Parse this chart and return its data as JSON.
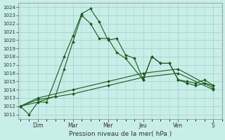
{
  "xlabel": "Pression niveau de la mer( hPa )",
  "bg_color": "#c8eee8",
  "grid_color": "#a0cccc",
  "line_color": "#1a5c1a",
  "ylim_min": 1010.5,
  "ylim_max": 1024.5,
  "yticks": [
    1011,
    1012,
    1013,
    1014,
    1015,
    1016,
    1017,
    1018,
    1019,
    1020,
    1021,
    1022,
    1023,
    1024
  ],
  "day_labels": [
    "Dim",
    "Mar",
    "Mer",
    "Jeu",
    "Ven",
    "S"
  ],
  "day_x": [
    1,
    3,
    5,
    7,
    9,
    11
  ],
  "xlim_min": -0.1,
  "xlim_max": 11.5,
  "series": [
    {
      "x": [
        0,
        0.5,
        1.0,
        1.5,
        2.5,
        3.0,
        3.5,
        4.0,
        4.5,
        5.0,
        5.5,
        6.0,
        6.5,
        7.0,
        7.5,
        8.0,
        8.5,
        9.0,
        9.5,
        10.0,
        10.5,
        11.0
      ],
      "y": [
        1012.0,
        1011.0,
        1012.5,
        1012.5,
        1018.0,
        1020.5,
        1023.2,
        1023.8,
        1022.2,
        1020.0,
        1020.2,
        1018.2,
        1017.8,
        1015.2,
        1018.0,
        1017.2,
        1017.2,
        1015.2,
        1015.0,
        1014.8,
        1015.2,
        1014.5
      ]
    },
    {
      "x": [
        0,
        1.0,
        2.0,
        2.5,
        3.0,
        3.5,
        4.0,
        4.5,
        5.0,
        5.5,
        6.0,
        7.0,
        7.5,
        8.0,
        8.5,
        9.0,
        9.5,
        10.0,
        10.5,
        11.0
      ],
      "y": [
        1012.0,
        1012.5,
        1013.2,
        1016.5,
        1019.8,
        1023.0,
        1022.0,
        1020.2,
        1020.2,
        1018.5,
        1017.8,
        1015.2,
        1018.0,
        1017.2,
        1017.2,
        1015.2,
        1014.8,
        1014.5,
        1014.8,
        1014.5
      ]
    },
    {
      "x": [
        0,
        1,
        3,
        5,
        7,
        9,
        11
      ],
      "y": [
        1012.0,
        1013.0,
        1014.0,
        1015.0,
        1016.0,
        1016.5,
        1014.2
      ]
    },
    {
      "x": [
        0,
        1,
        3,
        5,
        7,
        9,
        11
      ],
      "y": [
        1012.0,
        1012.8,
        1013.5,
        1014.5,
        1015.5,
        1016.0,
        1014.0
      ]
    }
  ]
}
